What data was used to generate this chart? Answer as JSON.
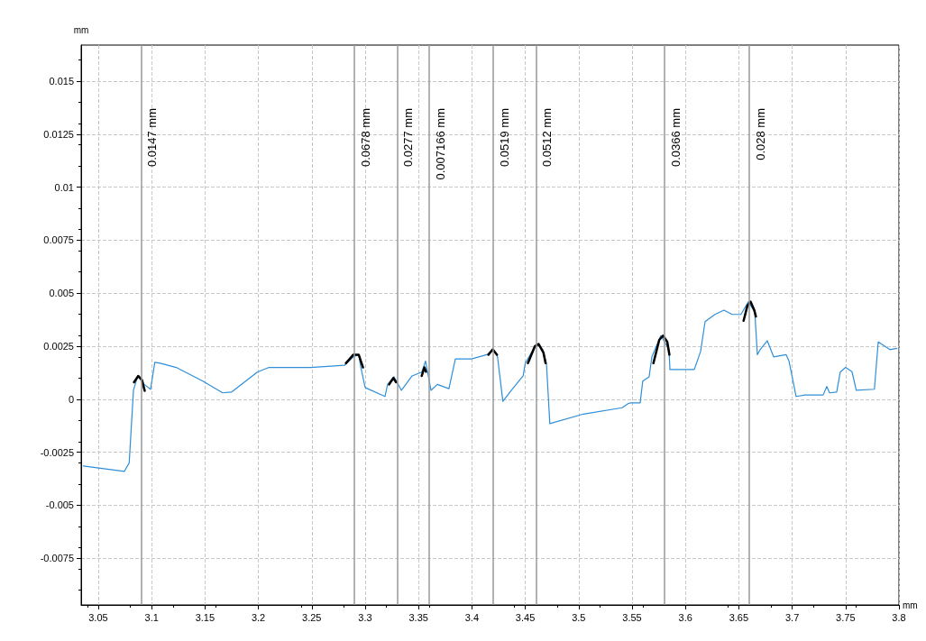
{
  "chart_data": {
    "type": "line",
    "xlabel": "mm",
    "ylabel": "mm",
    "xlim": [
      3.034,
      3.8
    ],
    "ylim": [
      -0.0097,
      0.0167
    ],
    "xticks": [
      3.05,
      3.1,
      3.15,
      3.2,
      3.25,
      3.3,
      3.35,
      3.4,
      3.45,
      3.5,
      3.55,
      3.6,
      3.65,
      3.7,
      3.75,
      3.8
    ],
    "yticks": [
      -0.0075,
      -0.005,
      -0.0025,
      0,
      0.0025,
      0.005,
      0.0075,
      0.01,
      0.0125,
      0.015
    ],
    "grid": true,
    "marker": "none",
    "line_style": "solid",
    "series": [
      {
        "color": "#2f8fd8",
        "x": [
          3.036,
          3.0745,
          3.079,
          3.083,
          3.087,
          3.093,
          3.099,
          3.103,
          3.108,
          3.123,
          3.148,
          3.1666,
          3.175,
          3.199,
          3.21,
          3.249,
          3.2806,
          3.289,
          3.294,
          3.296,
          3.3,
          3.3186,
          3.321,
          3.327,
          3.334,
          3.344,
          3.353,
          3.3566,
          3.3617,
          3.3676,
          3.3785,
          3.3845,
          3.3997,
          3.414,
          3.42,
          3.424,
          3.429,
          3.437,
          3.448,
          3.45,
          3.4605,
          3.4664,
          3.4698,
          3.473,
          3.5044,
          3.5407,
          3.5466,
          3.549,
          3.5576,
          3.56,
          3.566,
          3.5686,
          3.577,
          3.5846,
          3.5855,
          3.6083,
          3.6142,
          3.6184,
          3.6277,
          3.6361,
          3.6437,
          3.652,
          3.659,
          3.665,
          3.6674,
          3.67,
          3.6767,
          3.6826,
          3.6944,
          3.697,
          3.7037,
          3.712,
          3.729,
          3.7324,
          3.735,
          3.7417,
          3.745,
          3.75,
          3.756,
          3.76,
          3.777,
          3.7806,
          3.7916,
          3.798
        ],
        "values": [
          -0.00315,
          -0.0034,
          -0.003,
          0.00042,
          0.0011,
          0.0007,
          0.00047,
          0.00174,
          0.0017,
          0.0015,
          0.00085,
          0.0003,
          0.00034,
          0.00128,
          0.0015,
          0.0015,
          0.0016,
          0.002,
          0.0021,
          0.0015,
          0.00055,
          0.00013,
          0.0007,
          0.00106,
          0.00042,
          0.0011,
          0.00128,
          0.0018,
          0.00042,
          0.0007,
          0.0005,
          0.0019,
          0.0019,
          0.0021,
          0.00234,
          0.002,
          -0.0001,
          0.00042,
          0.0011,
          0.0017,
          0.0026,
          0.00234,
          0.0017,
          -0.00115,
          -0.0007,
          -0.0004,
          -0.0002,
          -0.00017,
          -0.00017,
          0.00085,
          0.00106,
          0.002,
          0.003,
          0.00234,
          0.0014,
          0.0014,
          0.00225,
          0.00366,
          0.004,
          0.0042,
          0.004,
          0.004,
          0.0046,
          0.0041,
          0.0021,
          0.00234,
          0.00276,
          0.002,
          0.0021,
          0.0018,
          0.00013,
          0.0002,
          0.0002,
          0.0006,
          0.0003,
          0.00034,
          0.00128,
          0.0015,
          0.0013,
          0.00042,
          0.00047,
          0.0027,
          0.00234,
          0.0024
        ]
      },
      {
        "color": "#000000",
        "x": [
          3.0835,
          3.0875,
          3.091,
          3.0935,
          3.095,
          3.282,
          3.289,
          3.294,
          3.298,
          3.299,
          3.3225,
          3.3265,
          3.329,
          3.33,
          3.353,
          3.3555,
          3.357,
          3.358,
          3.4155,
          3.4195,
          3.4235,
          3.425,
          3.4525,
          3.459,
          3.4625,
          3.467,
          3.469,
          3.47,
          3.57,
          3.5755,
          3.579,
          3.583,
          3.585,
          3.586,
          3.6545,
          3.658,
          3.661,
          3.6645,
          3.666
        ],
        "values": [
          0.0008,
          0.0011,
          0.0009,
          0.0004,
          null,
          0.0017,
          0.0021,
          0.0021,
          0.0015,
          null,
          0.0007,
          0.001,
          0.0008,
          null,
          0.0011,
          0.0015,
          0.0013,
          null,
          0.0021,
          0.00235,
          0.0021,
          null,
          0.0017,
          0.0025,
          0.0026,
          0.0022,
          0.0017,
          null,
          0.0017,
          0.0028,
          0.003,
          0.0027,
          0.0021,
          null,
          0.0037,
          0.0044,
          0.0046,
          0.0042,
          0.0039
        ]
      }
    ],
    "ref_lines": [
      {
        "axis": "x",
        "value": 3.09,
        "label": "0.0147 mm",
        "color": "#999999"
      },
      {
        "axis": "x",
        "value": 3.29,
        "label": "0.0678 mm",
        "color": "#999999"
      },
      {
        "axis": "x",
        "value": 3.33,
        "label": "0.0277 mm",
        "color": "#999999"
      },
      {
        "axis": "x",
        "value": 3.36,
        "label": "0.007166 mm",
        "color": "#999999"
      },
      {
        "axis": "x",
        "value": 3.42,
        "label": "0.0519 mm",
        "color": "#999999"
      },
      {
        "axis": "x",
        "value": 3.46,
        "label": "0.0512 mm",
        "color": "#999999"
      },
      {
        "axis": "x",
        "value": 3.58,
        "label": "0.0366 mm",
        "color": "#999999"
      },
      {
        "axis": "x",
        "value": 3.66,
        "label": "0.028 mm",
        "color": "#999999"
      }
    ]
  }
}
